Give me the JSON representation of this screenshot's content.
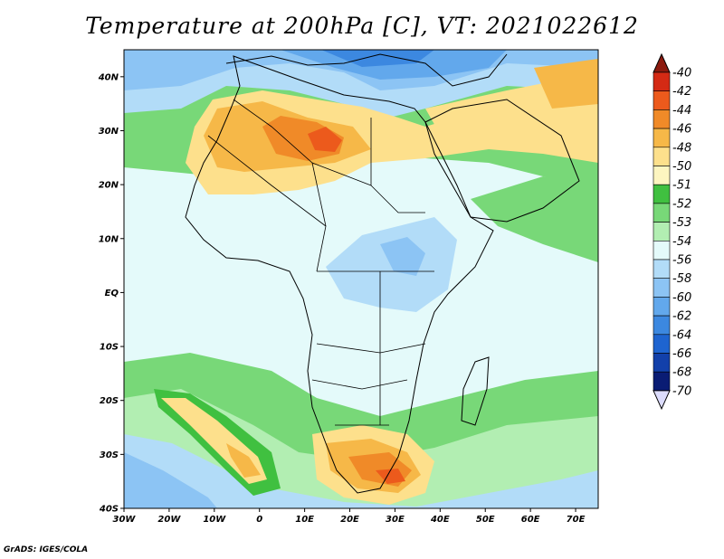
{
  "title": "Temperature at 200hPa [C], VT: 2021022612",
  "footer": "GrADS: IGES/COLA",
  "map": {
    "lon_ticks": [
      "30W",
      "20W",
      "10W",
      "0",
      "10E",
      "20E",
      "30E",
      "40E",
      "50E",
      "60E",
      "70E"
    ],
    "lat_ticks": [
      "40N",
      "30N",
      "20N",
      "10N",
      "EQ",
      "10S",
      "20S",
      "30S",
      "40S"
    ]
  },
  "colorbar": {
    "levels": [
      "-40",
      "-42",
      "-44",
      "-46",
      "-48",
      "-50",
      "-51",
      "-52",
      "-53",
      "-54",
      "-56",
      "-58",
      "-60",
      "-62",
      "-64",
      "-66",
      "-68",
      "-70"
    ],
    "colors": [
      "#8c1a0e",
      "#d42a14",
      "#ec5a1c",
      "#f08a28",
      "#f6b848",
      "#fde08c",
      "#fdf5c0",
      "#40c040",
      "#78d878",
      "#b2eeb2",
      "#e4fafa",
      "#b2dcf8",
      "#8cc4f4",
      "#62a8ec",
      "#3c88e0",
      "#1e64d0",
      "#1240aa",
      "#0a1c74",
      "#dcdcfc"
    ]
  }
}
